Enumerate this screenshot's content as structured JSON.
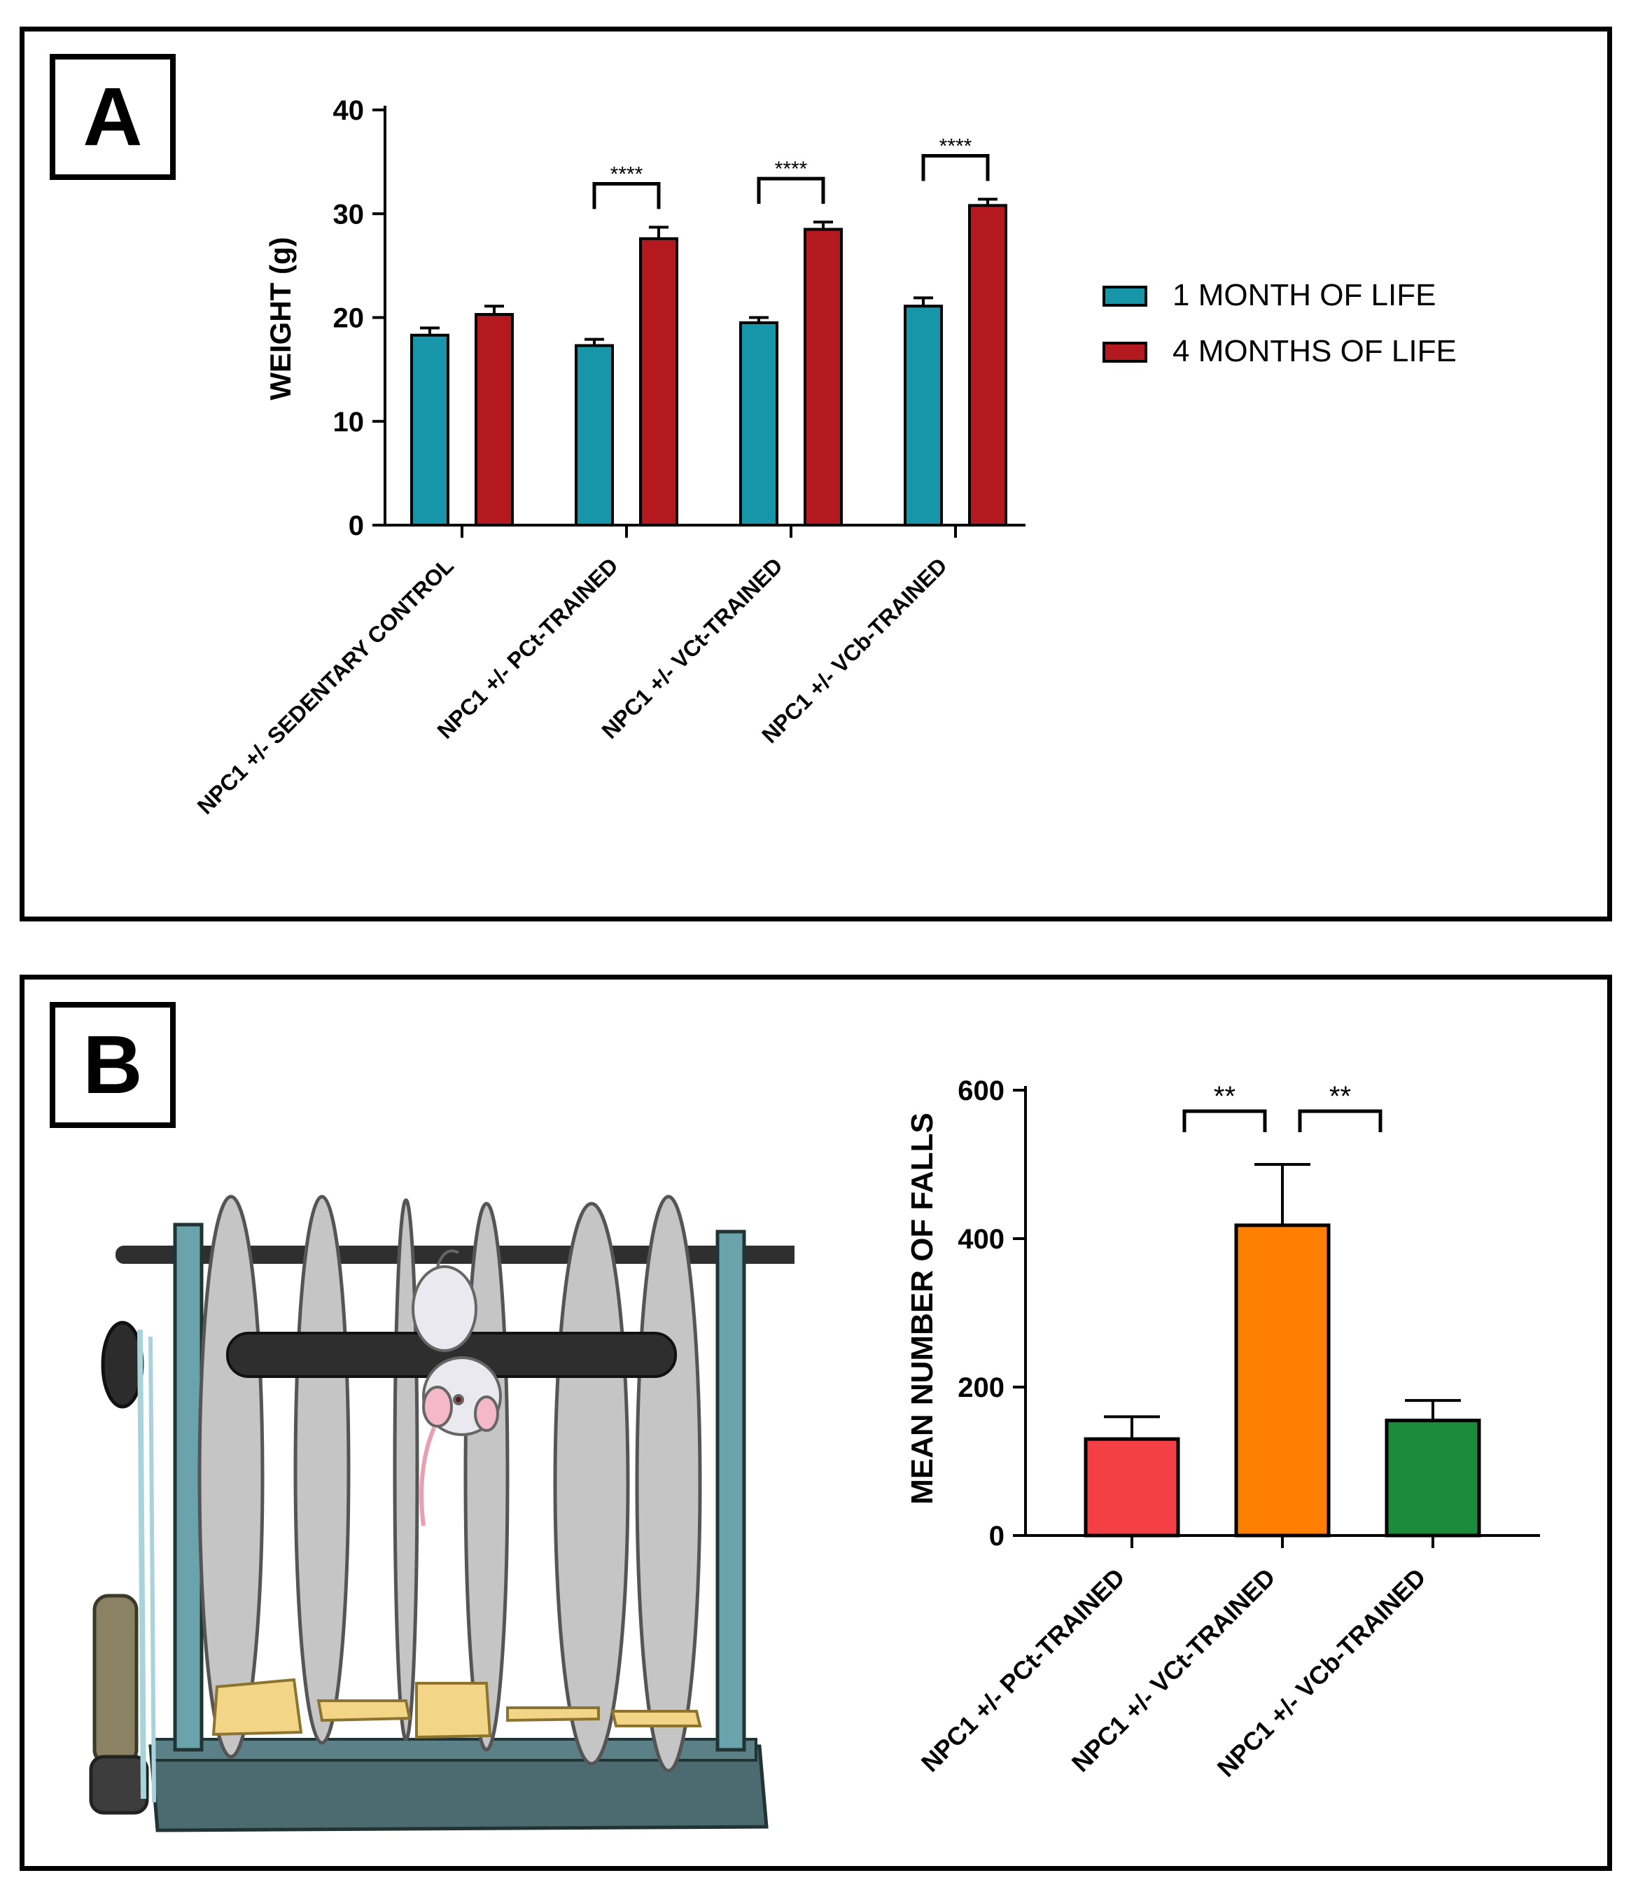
{
  "panels": [
    {
      "label": "A"
    },
    {
      "label": "B"
    }
  ],
  "chart_data": [
    {
      "type": "bar",
      "panel": "A",
      "ylabel": "WEIGHT (g)",
      "xlabel": "",
      "ylim": [
        0,
        40
      ],
      "yticks": [
        0,
        10,
        20,
        30,
        40
      ],
      "categories": [
        "NPC1 +/- SEDENTARY CONTROL",
        "NPC1 +/- PCt-TRAINED",
        "NPC1 +/- VCt-TRAINED",
        "NPC1 +/- VCb-TRAINED"
      ],
      "series": [
        {
          "name": "1 MONTH OF LIFE",
          "color": "#1696a8",
          "values": [
            18.3,
            17.3,
            19.5,
            21.1
          ],
          "errors": [
            0.7,
            0.6,
            0.5,
            0.8
          ]
        },
        {
          "name": "4 MONTHS OF LIFE",
          "color": "#b3191f",
          "values": [
            20.3,
            27.6,
            28.5,
            30.8
          ],
          "errors": [
            0.8,
            1.1,
            0.7,
            0.6
          ]
        }
      ],
      "significance": [
        "****",
        "****",
        "****"
      ],
      "significance_groups": [
        1,
        2,
        3
      ],
      "legend": "right"
    },
    {
      "type": "bar",
      "panel": "B",
      "ylabel": "MEAN NUMBER OF FALLS",
      "xlabel": "",
      "ylim": [
        0,
        600
      ],
      "yticks": [
        0,
        200,
        400,
        600
      ],
      "categories": [
        "NPC1 +/- PCt-TRAINED",
        "NPC1 +/- VCt-TRAINED",
        "NPC1 +/- VCb-TRAINED"
      ],
      "values": [
        130,
        418,
        155
      ],
      "errors": [
        30,
        82,
        27
      ],
      "colors": [
        "#f43f45",
        "#ff7f00",
        "#1b8a3b"
      ],
      "significance": [
        {
          "from": 0,
          "to": 1,
          "label": "**"
        },
        {
          "from": 1,
          "to": 2,
          "label": "**"
        }
      ]
    }
  ],
  "illustration": {
    "name": "rotarod-apparatus-with-mouse"
  }
}
